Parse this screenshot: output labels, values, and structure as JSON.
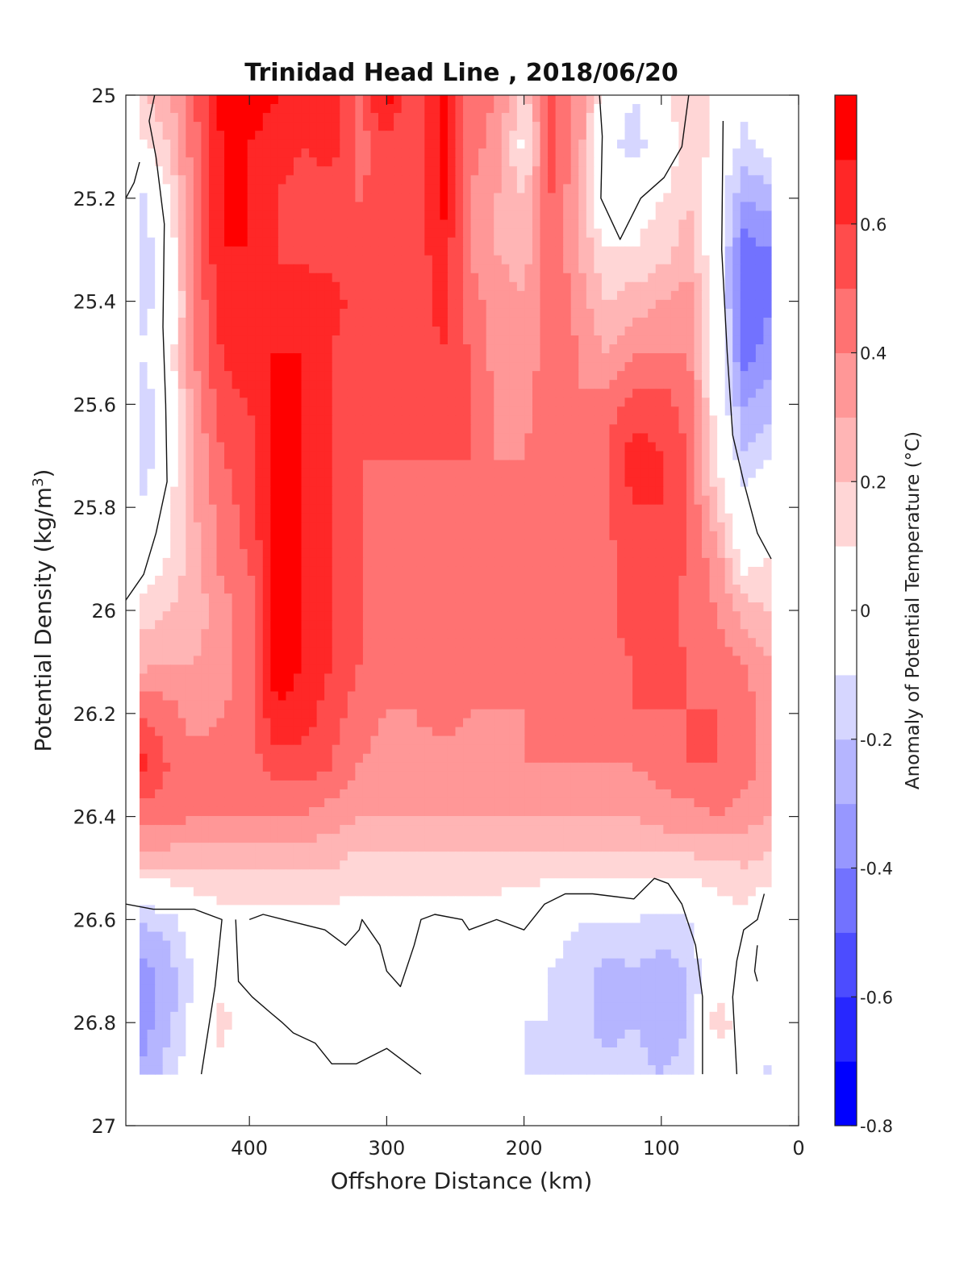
{
  "chart_data": {
    "type": "heatmap",
    "title": "Trinidad Head Line , 2018/06/20",
    "xlabel": "Offshore Distance (km)",
    "ylabel_main": "Potential Density (kg/m",
    "ylabel_sup": "3",
    "ylabel_close": ")",
    "colorbar_label": "Anomaly of Potential Temperature (°C)",
    "xlim": [
      490,
      0
    ],
    "ylim": [
      25,
      27
    ],
    "x_ticks": [
      400,
      300,
      200,
      100,
      0
    ],
    "x_tick_labels": [
      "400",
      "300",
      "200",
      "100",
      "0"
    ],
    "y_ticks": [
      25,
      25.2,
      25.4,
      25.6,
      25.8,
      26,
      26.2,
      26.4,
      26.6,
      26.8,
      27
    ],
    "y_tick_labels": [
      "25",
      "25.2",
      "25.4",
      "25.6",
      "25.8",
      "26",
      "26.2",
      "26.4",
      "26.6",
      "26.8",
      "27"
    ],
    "clim": [
      -0.8,
      0.8
    ],
    "levels": [
      -0.8,
      -0.7,
      -0.6,
      -0.5,
      -0.4,
      -0.3,
      -0.2,
      -0.1,
      0.1,
      0.2,
      0.3,
      0.4,
      0.5,
      0.6,
      0.7,
      0.8
    ],
    "colorbar_ticks": [
      -0.8,
      -0.6,
      -0.4,
      -0.2,
      0,
      0.2,
      0.4,
      0.6
    ],
    "colorbar_tick_labels": [
      "-0.8",
      "-0.6",
      "-0.4",
      "-0.2",
      "0",
      "0.2",
      "0.4",
      "0.6"
    ],
    "colorbar_colors": [
      "#0000ff",
      "#2727ff",
      "#4c4cff",
      "#7272ff",
      "#9797ff",
      "#b5b5ff",
      "#d6d6ff",
      "#ffffff",
      "#ffd6d6",
      "#ffb5b5",
      "#ff9797",
      "#ff7272",
      "#ff4c4c",
      "#ff2727",
      "#ff0000"
    ],
    "x": [
      20,
      40,
      60,
      80,
      100,
      120,
      140,
      160,
      180,
      200,
      220,
      240,
      260,
      280,
      300,
      320,
      340,
      360,
      380,
      400,
      420,
      440,
      460,
      480
    ],
    "y": [
      25,
      25.1,
      25.2,
      25.3,
      25.4,
      25.5,
      25.6,
      25.7,
      25.8,
      25.9,
      26,
      26.1,
      26.2,
      26.3,
      26.4,
      26.5,
      26.6,
      26.7,
      26.8,
      26.9
    ],
    "z": [
      [
        0.05,
        -0.05,
        0.05,
        0.2,
        0.05,
        -0.1,
        0.0,
        0.35,
        0.55,
        0.15,
        0.4,
        0.45,
        0.75,
        0.5,
        0.75,
        0.5,
        0.65,
        0.6,
        0.7,
        0.75,
        0.75,
        0.5,
        0.25,
        0.2
      ],
      [
        -0.05,
        -0.15,
        0.05,
        0.2,
        -0.05,
        -0.15,
        -0.05,
        0.35,
        0.55,
        0.05,
        0.35,
        0.45,
        0.75,
        0.5,
        0.55,
        0.45,
        0.65,
        0.6,
        0.65,
        0.7,
        0.7,
        0.45,
        0.2,
        0.05
      ],
      [
        -0.25,
        -0.3,
        0.0,
        0.2,
        0.1,
        0.05,
        -0.1,
        0.3,
        0.5,
        0.2,
        0.3,
        0.4,
        0.75,
        0.5,
        0.55,
        0.5,
        0.55,
        0.55,
        0.6,
        0.7,
        0.7,
        0.45,
        0.05,
        -0.15
      ],
      [
        -0.4,
        -0.45,
        0.0,
        0.25,
        0.15,
        0.1,
        0.1,
        0.3,
        0.5,
        0.25,
        0.3,
        0.4,
        0.7,
        0.5,
        0.55,
        0.5,
        0.55,
        0.55,
        0.6,
        0.7,
        0.7,
        0.45,
        -0.05,
        -0.15
      ],
      [
        -0.4,
        -0.5,
        0.05,
        0.35,
        0.3,
        0.25,
        0.2,
        0.35,
        0.5,
        0.3,
        0.35,
        0.45,
        0.65,
        0.5,
        0.55,
        0.55,
        0.65,
        0.7,
        0.6,
        0.7,
        0.65,
        0.4,
        -0.05,
        -0.15
      ],
      [
        -0.35,
        -0.45,
        0.05,
        0.4,
        0.4,
        0.4,
        0.3,
        0.4,
        0.5,
        0.3,
        0.35,
        0.5,
        0.6,
        0.5,
        0.5,
        0.5,
        0.6,
        0.7,
        0.7,
        0.7,
        0.6,
        0.4,
        0.0,
        -0.1
      ],
      [
        -0.25,
        -0.3,
        0.05,
        0.45,
        0.55,
        0.55,
        0.45,
        0.4,
        0.5,
        0.35,
        0.4,
        0.5,
        0.55,
        0.5,
        0.5,
        0.5,
        0.6,
        0.7,
        0.75,
        0.6,
        0.55,
        0.35,
        0.0,
        -0.2
      ],
      [
        -0.1,
        -0.2,
        0.1,
        0.5,
        0.6,
        0.65,
        0.5,
        0.45,
        0.5,
        0.4,
        0.4,
        0.5,
        0.5,
        0.5,
        0.5,
        0.5,
        0.6,
        0.7,
        0.75,
        0.55,
        0.5,
        0.3,
        0.0,
        -0.2
      ],
      [
        0.05,
        -0.05,
        0.2,
        0.5,
        0.6,
        0.6,
        0.5,
        0.45,
        0.45,
        0.4,
        0.4,
        0.45,
        0.5,
        0.45,
        0.45,
        0.5,
        0.6,
        0.7,
        0.75,
        0.55,
        0.45,
        0.3,
        0.05,
        -0.1
      ],
      [
        0.1,
        0.05,
        0.35,
        0.5,
        0.55,
        0.6,
        0.45,
        0.45,
        0.5,
        0.45,
        0.4,
        0.45,
        0.5,
        0.45,
        0.45,
        0.5,
        0.6,
        0.7,
        0.75,
        0.5,
        0.45,
        0.25,
        0.1,
        -0.05
      ],
      [
        0.2,
        0.25,
        0.4,
        0.45,
        0.55,
        0.6,
        0.45,
        0.45,
        0.5,
        0.45,
        0.4,
        0.45,
        0.45,
        0.45,
        0.45,
        0.5,
        0.6,
        0.7,
        0.75,
        0.45,
        0.35,
        0.25,
        0.2,
        0.15
      ],
      [
        0.3,
        0.4,
        0.45,
        0.5,
        0.55,
        0.5,
        0.45,
        0.45,
        0.5,
        0.45,
        0.4,
        0.4,
        0.45,
        0.45,
        0.45,
        0.5,
        0.6,
        0.7,
        0.75,
        0.45,
        0.35,
        0.3,
        0.3,
        0.25
      ],
      [
        0.35,
        0.45,
        0.5,
        0.5,
        0.5,
        0.5,
        0.45,
        0.45,
        0.45,
        0.4,
        0.4,
        0.4,
        0.45,
        0.4,
        0.4,
        0.45,
        0.55,
        0.65,
        0.7,
        0.45,
        0.4,
        0.35,
        0.45,
        0.5
      ],
      [
        0.35,
        0.45,
        0.5,
        0.5,
        0.45,
        0.4,
        0.4,
        0.4,
        0.4,
        0.4,
        0.35,
        0.35,
        0.35,
        0.35,
        0.35,
        0.4,
        0.5,
        0.55,
        0.55,
        0.45,
        0.45,
        0.45,
        0.5,
        0.65
      ],
      [
        0.3,
        0.35,
        0.4,
        0.35,
        0.35,
        0.3,
        0.3,
        0.3,
        0.3,
        0.3,
        0.3,
        0.3,
        0.3,
        0.3,
        0.3,
        0.3,
        0.35,
        0.4,
        0.4,
        0.4,
        0.4,
        0.4,
        0.45,
        0.45
      ],
      [
        0.15,
        0.2,
        0.15,
        0.15,
        0.15,
        0.15,
        0.15,
        0.15,
        0.15,
        0.15,
        0.15,
        0.15,
        0.15,
        0.15,
        0.15,
        0.15,
        0.2,
        0.2,
        0.2,
        0.2,
        0.2,
        0.2,
        0.2,
        0.2
      ],
      [
        -0.05,
        0.05,
        0.05,
        -0.1,
        -0.15,
        -0.1,
        -0.1,
        -0.1,
        -0.05,
        0.0,
        0.05,
        0.05,
        0.05,
        0.05,
        0.05,
        0.05,
        0.05,
        0.05,
        0.05,
        0.05,
        0.05,
        0.0,
        -0.15,
        -0.2
      ],
      [
        0.0,
        0.0,
        0.05,
        -0.2,
        -0.25,
        -0.2,
        -0.25,
        -0.15,
        -0.1,
        0.0,
        0.0,
        0.0,
        0.0,
        0.0,
        0.0,
        0.0,
        0.0,
        0.0,
        0.0,
        0.0,
        0.05,
        -0.1,
        -0.25,
        -0.35
      ],
      [
        0.0,
        0.05,
        0.15,
        -0.2,
        -0.3,
        -0.2,
        -0.25,
        -0.15,
        -0.1,
        -0.1,
        0.0,
        0.0,
        0.0,
        0.0,
        0.0,
        0.0,
        0.0,
        0.0,
        0.0,
        0.0,
        0.15,
        -0.05,
        -0.25,
        -0.35
      ],
      [
        -0.15,
        0.0,
        0.05,
        -0.15,
        -0.2,
        -0.15,
        -0.15,
        -0.15,
        -0.15,
        -0.1,
        0.0,
        0.0,
        0.0,
        0.0,
        0.0,
        0.0,
        0.0,
        0.0,
        0.0,
        0.0,
        0.05,
        0.0,
        -0.15,
        -0.3
      ]
    ],
    "zero_contours": [
      [
        [
          469,
          25.0
        ],
        [
          473,
          25.05
        ],
        [
          468,
          25.12
        ],
        [
          462,
          25.25
        ],
        [
          463,
          25.45
        ],
        [
          461,
          25.6
        ],
        [
          460,
          25.75
        ],
        [
          468,
          25.85
        ],
        [
          477,
          25.93
        ],
        [
          490,
          25.98
        ]
      ],
      [
        [
          490,
          25.2
        ],
        [
          484,
          25.17
        ],
        [
          480,
          25.13
        ]
      ],
      [
        [
          145,
          25.0
        ],
        [
          143,
          25.08
        ],
        [
          144,
          25.2
        ],
        [
          130,
          25.28
        ],
        [
          115,
          25.2
        ],
        [
          98,
          25.16
        ],
        [
          85,
          25.1
        ],
        [
          80,
          25.0
        ]
      ],
      [
        [
          55,
          25.05
        ],
        [
          56,
          25.3
        ],
        [
          52,
          25.5
        ],
        [
          48,
          25.66
        ],
        [
          40,
          25.75
        ],
        [
          30,
          25.85
        ],
        [
          20,
          25.9
        ]
      ],
      [
        [
          490,
          26.57
        ],
        [
          470,
          26.58
        ],
        [
          440,
          26.58
        ],
        [
          420,
          26.6
        ],
        [
          425,
          26.73
        ],
        [
          435,
          26.9
        ]
      ],
      [
        [
          410,
          26.6
        ],
        [
          408,
          26.72
        ],
        [
          398,
          26.75
        ],
        [
          385,
          26.78
        ],
        [
          376,
          26.8
        ],
        [
          368,
          26.82
        ],
        [
          352,
          26.84
        ],
        [
          340,
          26.88
        ],
        [
          322,
          26.88
        ],
        [
          300,
          26.85
        ],
        [
          285,
          26.88
        ],
        [
          275,
          26.9
        ]
      ],
      [
        [
          400,
          26.6
        ],
        [
          390,
          26.59
        ],
        [
          375,
          26.6
        ],
        [
          345,
          26.62
        ],
        [
          330,
          26.65
        ],
        [
          320,
          26.62
        ],
        [
          318,
          26.6
        ],
        [
          305,
          26.65
        ],
        [
          300,
          26.7
        ],
        [
          290,
          26.73
        ],
        [
          280,
          26.65
        ],
        [
          275,
          26.6
        ],
        [
          265,
          26.59
        ],
        [
          245,
          26.6
        ],
        [
          240,
          26.62
        ],
        [
          220,
          26.6
        ],
        [
          200,
          26.62
        ],
        [
          185,
          26.57
        ],
        [
          170,
          26.55
        ],
        [
          150,
          26.55
        ],
        [
          120,
          26.56
        ],
        [
          105,
          26.52
        ],
        [
          95,
          26.53
        ],
        [
          85,
          26.57
        ],
        [
          75,
          26.65
        ],
        [
          70,
          26.75
        ],
        [
          70,
          26.9
        ]
      ],
      [
        [
          45,
          26.9
        ],
        [
          48,
          26.75
        ],
        [
          45,
          26.68
        ],
        [
          40,
          26.62
        ],
        [
          30,
          26.6
        ],
        [
          25,
          26.55
        ]
      ],
      [
        [
          30,
          26.65
        ],
        [
          32,
          26.7
        ],
        [
          30,
          26.72
        ]
      ]
    ]
  }
}
